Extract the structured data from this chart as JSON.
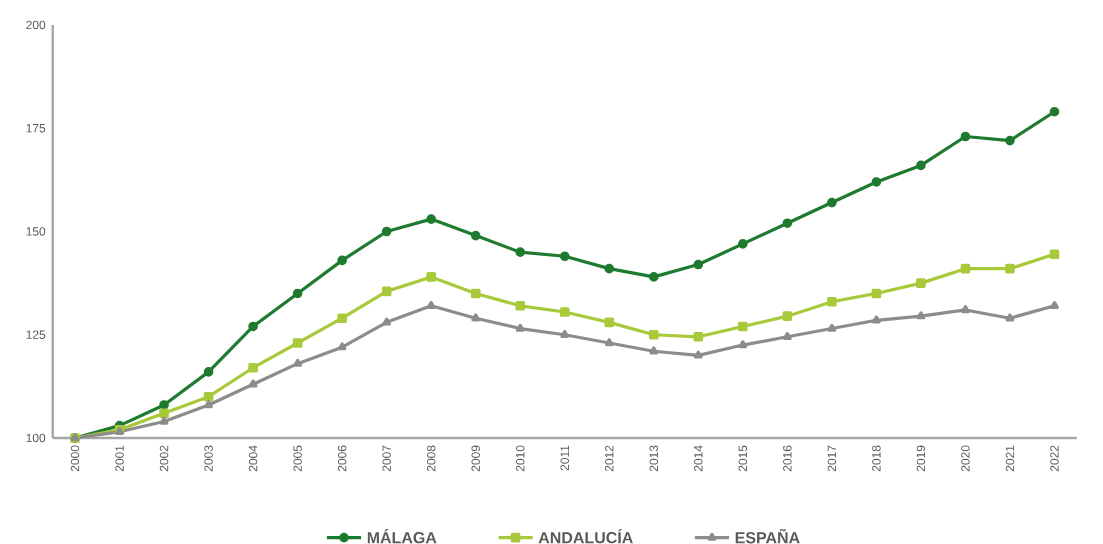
{
  "chart_data": {
    "type": "line",
    "categories": [
      "2000",
      "2001",
      "2002",
      "2003",
      "2004",
      "2005",
      "2006",
      "2007",
      "2008",
      "2009",
      "2010",
      "2011",
      "2012",
      "2013",
      "2014",
      "2015",
      "2016",
      "2017",
      "2018",
      "2019",
      "2020",
      "2021",
      "2022"
    ],
    "series": [
      {
        "name": "MÁLAGA",
        "color": "#1e7a2e",
        "marker": "circle",
        "values": [
          100,
          103,
          108,
          116,
          127,
          135,
          143,
          150,
          153,
          149,
          145,
          144,
          141,
          139,
          142,
          147,
          152,
          157,
          162,
          166,
          173,
          172,
          179
        ]
      },
      {
        "name": "ANDALUCÍA",
        "color": "#a8c93a",
        "marker": "square",
        "values": [
          100,
          102,
          106,
          110,
          117,
          123,
          129,
          135.5,
          139,
          135,
          132,
          130.5,
          128,
          125,
          124.5,
          127,
          129.5,
          133,
          135,
          137.5,
          141,
          141,
          144.5
        ]
      },
      {
        "name": "ESPAÑA",
        "color": "#8c8c8c",
        "marker": "triangle",
        "values": [
          100,
          101.5,
          104,
          108,
          113,
          118,
          122,
          128,
          132,
          129,
          126.5,
          125,
          123,
          121,
          120,
          122.5,
          124.5,
          126.5,
          128.5,
          129.5,
          131,
          129,
          132
        ]
      }
    ],
    "ylim": [
      100,
      200
    ],
    "yticks": [
      100,
      125,
      150,
      175,
      200
    ],
    "grid": false,
    "legend": "bottom",
    "line_style": "solid"
  }
}
